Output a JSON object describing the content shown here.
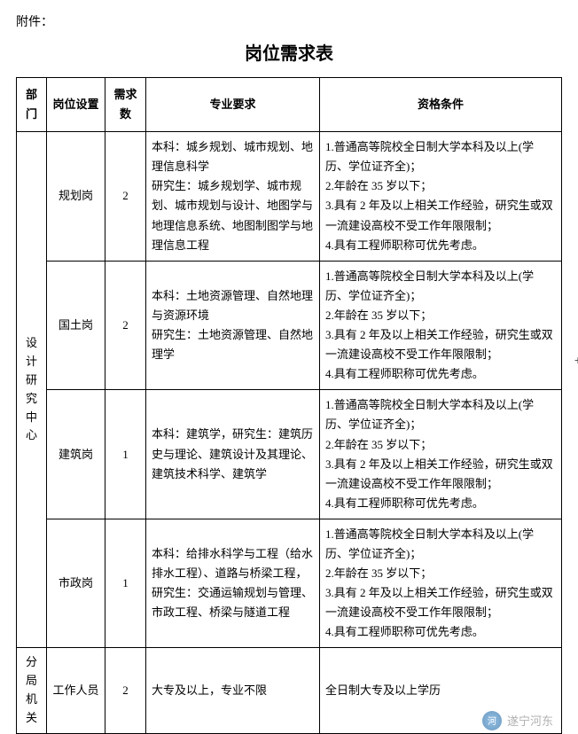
{
  "attachment_label": "附件：",
  "title": "岗位需求表",
  "headers": {
    "dept": "部门",
    "position": "岗位设置",
    "count": "需求数",
    "major": "专业要求",
    "qualification": "资格条件"
  },
  "departments": [
    {
      "name": "设\n计\n研\n究\n中\n心",
      "rows": [
        {
          "position": "规划岗",
          "count": "2",
          "major": "本科：城乡规划、城市规划、地理信息科学\n研究生：城乡规划学、城市规划、城市规划与设计、地图学与地理信息系统、地图制图学与地理信息工程",
          "qualification": "1.普通高等院校全日制大学本科及以上(学历、学位证齐全)；\n2.年龄在 35 岁以下；\n3.具有 2 年及以上相关工作经验，研究生或双一流建设高校不受工作年限限制；\n4.具有工程师职称可优先考虑。"
        },
        {
          "position": "国土岗",
          "count": "2",
          "major": "本科：土地资源管理、自然地理与资源环境\n研究生：土地资源管理、自然地理学",
          "qualification": "1.普通高等院校全日制大学本科及以上(学历、学位证齐全)；\n2.年龄在 35 岁以下；\n3.具有 2 年及以上相关工作经验，研究生或双一流建设高校不受工作年限限制；\n4.具有工程师职称可优先考虑。"
        },
        {
          "position": "建筑岗",
          "count": "1",
          "major": "本科：建筑学，研究生：建筑历史与理论、建筑设计及其理论、建筑技术科学、建筑学",
          "qualification": "1.普通高等院校全日制大学本科及以上(学历、学位证齐全)；\n2.年龄在 35 岁以下；\n3.具有 2 年及以上相关工作经验，研究生或双一流建设高校不受工作年限限制；\n4.具有工程师职称可优先考虑。"
        },
        {
          "position": "市政岗",
          "count": "1",
          "major": "本科：给排水科学与工程（给水排水工程）、道路与桥梁工程，研究生：交通运输规划与管理、市政工程、桥梁与隧道工程",
          "qualification": "1.普通高等院校全日制大学本科及以上(学历、学位证齐全)；\n2.年龄在 35 岁以下；\n3.具有 2 年及以上相关工作经验，研究生或双一流建设高校不受工作年限限制；\n4.具有工程师职称可优先考虑。"
        }
      ]
    },
    {
      "name": "分\n局\n机\n关",
      "rows": [
        {
          "position": "工作人员",
          "count": "2",
          "major": "大专及以上，专业不限",
          "qualification": "全日制大专及以上学历"
        }
      ]
    }
  ],
  "side_plus": "+",
  "footer_text": "遂宁河东"
}
